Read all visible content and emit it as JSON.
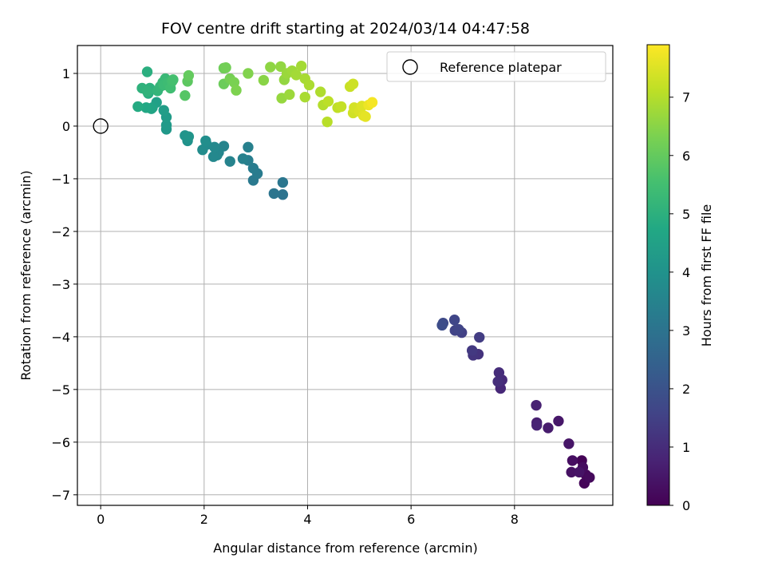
{
  "chart_data": {
    "type": "scatter",
    "title": "FOV centre drift starting at 2024/03/14 04:47:58",
    "xlabel": "Angular distance from reference (arcmin)",
    "ylabel": "Rotation from reference (arcmin)",
    "xlim": [
      -0.45,
      9.9
    ],
    "ylim": [
      -7.2,
      1.53
    ],
    "xticks": [
      0,
      2,
      4,
      6,
      8
    ],
    "yticks": [
      1,
      0,
      -1,
      -2,
      -3,
      -4,
      -5,
      -6,
      -7
    ],
    "xtick_labels": [
      "0",
      "2",
      "4",
      "6",
      "8"
    ],
    "ytick_labels": [
      "1",
      "0",
      "−1",
      "−2",
      "−3",
      "−4",
      "−5",
      "−6",
      "−7"
    ],
    "grid": true,
    "legend": {
      "position": "top-right",
      "entries": [
        "Reference platepar"
      ]
    },
    "reference_point": {
      "x": 0,
      "y": 0
    },
    "colorbar": {
      "label": "Hours from first FF file",
      "min": 0,
      "max": 7.9,
      "ticks": [
        0,
        1,
        2,
        3,
        4,
        5,
        6,
        7
      ],
      "tick_labels": [
        "0",
        "1",
        "2",
        "3",
        "4",
        "5",
        "6",
        "7"
      ],
      "colormap": "viridis"
    },
    "points": [
      {
        "x": 9.3,
        "y": -6.35,
        "c": 0.05
      },
      {
        "x": 9.35,
        "y": -6.78,
        "c": 0.1
      },
      {
        "x": 9.38,
        "y": -6.62,
        "c": 0.15
      },
      {
        "x": 9.45,
        "y": -6.67,
        "c": 0.2
      },
      {
        "x": 9.32,
        "y": -6.48,
        "c": 0.25
      },
      {
        "x": 9.12,
        "y": -6.35,
        "c": 0.3
      },
      {
        "x": 9.1,
        "y": -6.57,
        "c": 0.35
      },
      {
        "x": 9.25,
        "y": -6.57,
        "c": 0.4
      },
      {
        "x": 9.05,
        "y": -6.03,
        "c": 0.45
      },
      {
        "x": 8.85,
        "y": -5.6,
        "c": 0.5
      },
      {
        "x": 8.65,
        "y": -5.73,
        "c": 0.6
      },
      {
        "x": 8.43,
        "y": -5.63,
        "c": 0.7
      },
      {
        "x": 8.42,
        "y": -5.3,
        "c": 0.75
      },
      {
        "x": 8.43,
        "y": -5.68,
        "c": 0.8
      },
      {
        "x": 7.73,
        "y": -4.98,
        "c": 0.9
      },
      {
        "x": 7.76,
        "y": -4.82,
        "c": 0.95
      },
      {
        "x": 7.7,
        "y": -4.68,
        "c": 1.0
      },
      {
        "x": 7.68,
        "y": -4.85,
        "c": 1.05
      },
      {
        "x": 7.3,
        "y": -4.33,
        "c": 1.15
      },
      {
        "x": 7.2,
        "y": -4.35,
        "c": 1.2
      },
      {
        "x": 7.18,
        "y": -4.26,
        "c": 1.3
      },
      {
        "x": 7.32,
        "y": -4.01,
        "c": 1.4
      },
      {
        "x": 6.98,
        "y": -3.92,
        "c": 1.5
      },
      {
        "x": 6.85,
        "y": -3.88,
        "c": 1.55
      },
      {
        "x": 6.92,
        "y": -3.86,
        "c": 1.6
      },
      {
        "x": 6.84,
        "y": -3.68,
        "c": 1.65
      },
      {
        "x": 6.62,
        "y": -3.74,
        "c": 1.75
      },
      {
        "x": 6.6,
        "y": -3.78,
        "c": 1.85
      },
      {
        "x": 3.52,
        "y": -1.3,
        "c": 3.0
      },
      {
        "x": 3.35,
        "y": -1.28,
        "c": 3.05
      },
      {
        "x": 3.52,
        "y": -1.07,
        "c": 3.1
      },
      {
        "x": 2.95,
        "y": -1.03,
        "c": 3.2
      },
      {
        "x": 3.03,
        "y": -0.9,
        "c": 3.25
      },
      {
        "x": 2.95,
        "y": -0.8,
        "c": 3.3
      },
      {
        "x": 2.85,
        "y": -0.65,
        "c": 3.35
      },
      {
        "x": 2.85,
        "y": -0.4,
        "c": 3.4
      },
      {
        "x": 2.75,
        "y": -0.62,
        "c": 3.45
      },
      {
        "x": 2.5,
        "y": -0.67,
        "c": 3.5
      },
      {
        "x": 2.38,
        "y": -0.38,
        "c": 3.55
      },
      {
        "x": 2.28,
        "y": -0.5,
        "c": 3.6
      },
      {
        "x": 2.25,
        "y": -0.55,
        "c": 3.62
      },
      {
        "x": 2.18,
        "y": -0.58,
        "c": 3.65
      },
      {
        "x": 2.2,
        "y": -0.4,
        "c": 3.7
      },
      {
        "x": 2.05,
        "y": -0.35,
        "c": 3.75
      },
      {
        "x": 1.97,
        "y": -0.45,
        "c": 3.8
      },
      {
        "x": 2.03,
        "y": -0.28,
        "c": 3.85
      },
      {
        "x": 1.68,
        "y": -0.28,
        "c": 4.0
      },
      {
        "x": 1.63,
        "y": -0.18,
        "c": 4.05
      },
      {
        "x": 1.7,
        "y": -0.2,
        "c": 4.1
      },
      {
        "x": 1.27,
        "y": -0.06,
        "c": 4.2
      },
      {
        "x": 1.27,
        "y": 0.02,
        "c": 4.25
      },
      {
        "x": 1.27,
        "y": 0.17,
        "c": 4.3
      },
      {
        "x": 1.22,
        "y": 0.3,
        "c": 4.35
      },
      {
        "x": 1.08,
        "y": 0.45,
        "c": 4.45
      },
      {
        "x": 1.0,
        "y": 0.35,
        "c": 4.55
      },
      {
        "x": 0.98,
        "y": 0.33,
        "c": 4.6
      },
      {
        "x": 0.88,
        "y": 0.35,
        "c": 4.7
      },
      {
        "x": 0.72,
        "y": 0.37,
        "c": 4.8
      },
      {
        "x": 0.92,
        "y": 0.62,
        "c": 4.9
      },
      {
        "x": 0.9,
        "y": 1.03,
        "c": 4.95
      },
      {
        "x": 0.95,
        "y": 0.72,
        "c": 5.0
      },
      {
        "x": 0.8,
        "y": 0.72,
        "c": 5.05
      },
      {
        "x": 0.9,
        "y": 0.66,
        "c": 5.1
      },
      {
        "x": 1.1,
        "y": 0.67,
        "c": 5.15
      },
      {
        "x": 1.15,
        "y": 0.75,
        "c": 5.2
      },
      {
        "x": 1.2,
        "y": 0.83,
        "c": 5.25
      },
      {
        "x": 1.25,
        "y": 0.9,
        "c": 5.3
      },
      {
        "x": 1.22,
        "y": 0.78,
        "c": 5.35
      },
      {
        "x": 1.3,
        "y": 0.82,
        "c": 5.4
      },
      {
        "x": 1.35,
        "y": 0.72,
        "c": 5.45
      },
      {
        "x": 1.38,
        "y": 0.85,
        "c": 5.5
      },
      {
        "x": 1.4,
        "y": 0.88,
        "c": 5.55
      },
      {
        "x": 1.63,
        "y": 0.58,
        "c": 5.8
      },
      {
        "x": 1.68,
        "y": 0.85,
        "c": 5.9
      },
      {
        "x": 1.7,
        "y": 0.96,
        "c": 6.0
      },
      {
        "x": 2.38,
        "y": 0.8,
        "c": 6.1
      },
      {
        "x": 2.38,
        "y": 1.1,
        "c": 6.15
      },
      {
        "x": 2.42,
        "y": 1.11,
        "c": 6.2
      },
      {
        "x": 2.5,
        "y": 0.9,
        "c": 6.25
      },
      {
        "x": 2.58,
        "y": 0.83,
        "c": 6.3
      },
      {
        "x": 2.62,
        "y": 0.68,
        "c": 6.35
      },
      {
        "x": 2.85,
        "y": 1.0,
        "c": 6.4
      },
      {
        "x": 3.15,
        "y": 0.87,
        "c": 6.5
      },
      {
        "x": 3.28,
        "y": 1.12,
        "c": 6.55
      },
      {
        "x": 3.48,
        "y": 1.13,
        "c": 6.6
      },
      {
        "x": 3.55,
        "y": 0.88,
        "c": 6.62
      },
      {
        "x": 3.5,
        "y": 0.53,
        "c": 6.65
      },
      {
        "x": 3.6,
        "y": 1.0,
        "c": 6.7
      },
      {
        "x": 3.65,
        "y": 0.6,
        "c": 6.72
      },
      {
        "x": 3.7,
        "y": 1.05,
        "c": 6.75
      },
      {
        "x": 3.78,
        "y": 0.97,
        "c": 6.8
      },
      {
        "x": 3.88,
        "y": 1.14,
        "c": 6.82
      },
      {
        "x": 3.95,
        "y": 0.9,
        "c": 6.85
      },
      {
        "x": 3.95,
        "y": 0.55,
        "c": 6.88
      },
      {
        "x": 4.03,
        "y": 0.78,
        "c": 6.9
      },
      {
        "x": 4.25,
        "y": 0.65,
        "c": 6.95
      },
      {
        "x": 4.3,
        "y": 0.4,
        "c": 7.0
      },
      {
        "x": 4.38,
        "y": 0.08,
        "c": 7.05
      },
      {
        "x": 4.4,
        "y": 0.47,
        "c": 7.1
      },
      {
        "x": 4.58,
        "y": 0.35,
        "c": 7.15
      },
      {
        "x": 4.65,
        "y": 0.37,
        "c": 7.2
      },
      {
        "x": 4.82,
        "y": 0.75,
        "c": 7.25
      },
      {
        "x": 4.88,
        "y": 0.8,
        "c": 7.3
      },
      {
        "x": 4.88,
        "y": 0.25,
        "c": 7.35
      },
      {
        "x": 4.9,
        "y": 0.35,
        "c": 7.4
      },
      {
        "x": 5.0,
        "y": 0.28,
        "c": 7.45
      },
      {
        "x": 5.05,
        "y": 0.38,
        "c": 7.5
      },
      {
        "x": 5.08,
        "y": 0.2,
        "c": 7.55
      },
      {
        "x": 5.12,
        "y": 0.18,
        "c": 7.6
      },
      {
        "x": 5.18,
        "y": 0.4,
        "c": 7.7
      },
      {
        "x": 5.25,
        "y": 0.45,
        "c": 7.8
      }
    ]
  }
}
